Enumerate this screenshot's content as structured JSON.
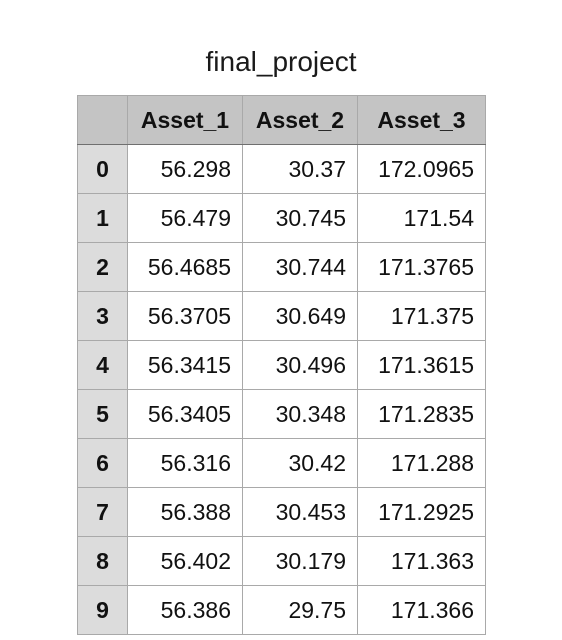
{
  "title": "final_project",
  "columns": [
    "Asset_1",
    "Asset_2",
    "Asset_3"
  ],
  "rows": [
    {
      "index": "0",
      "values": [
        "56.298",
        "30.37",
        "172.0965"
      ]
    },
    {
      "index": "1",
      "values": [
        "56.479",
        "30.745",
        "171.54"
      ]
    },
    {
      "index": "2",
      "values": [
        "56.4685",
        "30.744",
        "171.3765"
      ]
    },
    {
      "index": "3",
      "values": [
        "56.3705",
        "30.649",
        "171.375"
      ]
    },
    {
      "index": "4",
      "values": [
        "56.3415",
        "30.496",
        "171.3615"
      ]
    },
    {
      "index": "5",
      "values": [
        "56.3405",
        "30.348",
        "171.2835"
      ]
    },
    {
      "index": "6",
      "values": [
        "56.316",
        "30.42",
        "171.288"
      ]
    },
    {
      "index": "7",
      "values": [
        "56.388",
        "30.453",
        "171.2925"
      ]
    },
    {
      "index": "8",
      "values": [
        "56.402",
        "30.179",
        "171.363"
      ]
    },
    {
      "index": "9",
      "values": [
        "56.386",
        "29.75",
        "171.366"
      ]
    }
  ],
  "colors": {
    "header_bg": "#c4c4c4",
    "index_bg": "#dcdcdc",
    "grid": "#a9a9a9"
  }
}
